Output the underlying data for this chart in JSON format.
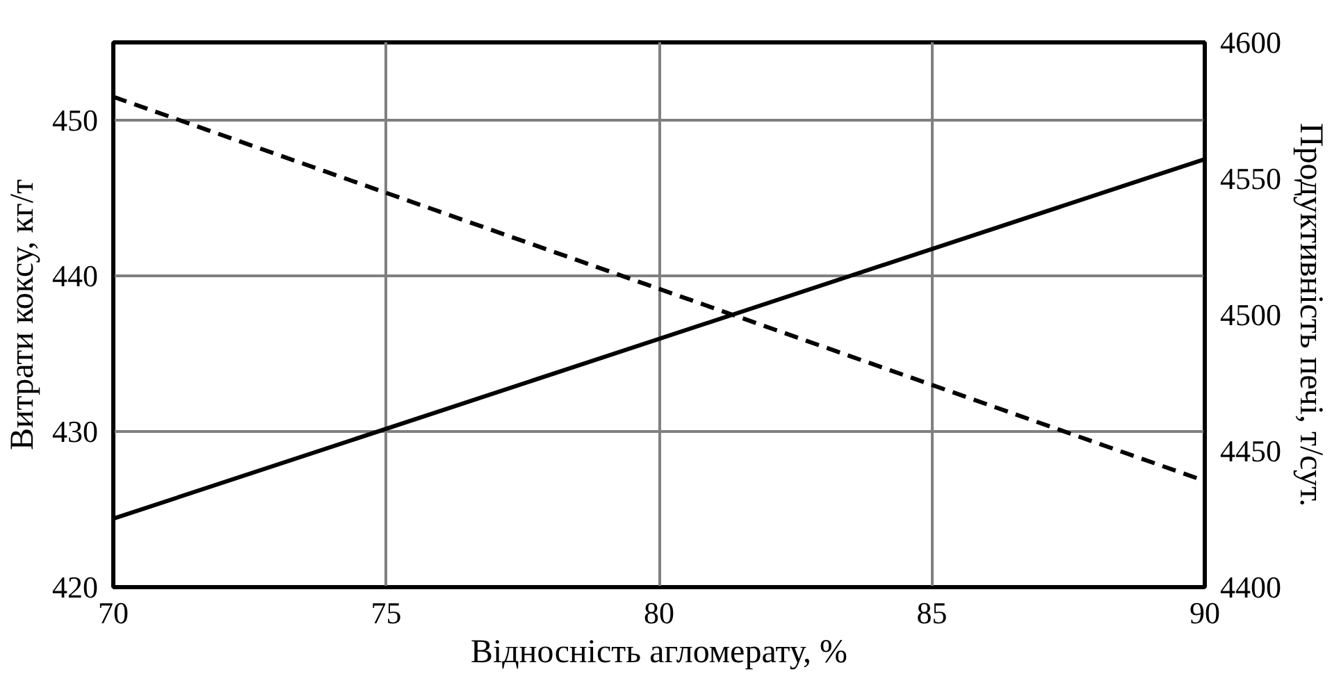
{
  "chart_data": {
    "type": "line",
    "xlabel": "Відносність агломерату, %",
    "ylabel": "Витрати коксу, кг/т",
    "y2label": "Продуктивність печі, т/сут.",
    "x": [
      70,
      90
    ],
    "series": [
      {
        "color": "#000000",
        "values": [
          424.4,
          447.5
        ],
        "line_style": "solid"
      },
      {
        "color": "#000000",
        "values": [
          4580,
          4439
        ],
        "line_style": "dashed",
        "axis": "y2"
      }
    ],
    "xlim": [
      70,
      90
    ],
    "xticks": [
      70,
      75,
      80,
      85,
      90
    ],
    "ylim": [
      420,
      455
    ],
    "yticks": [
      420,
      430,
      440,
      450
    ],
    "y2lim": [
      4400,
      4600
    ],
    "y2ticks": [
      4400,
      4450,
      4500,
      4550,
      4600
    ],
    "grid": true,
    "marker": "none"
  }
}
